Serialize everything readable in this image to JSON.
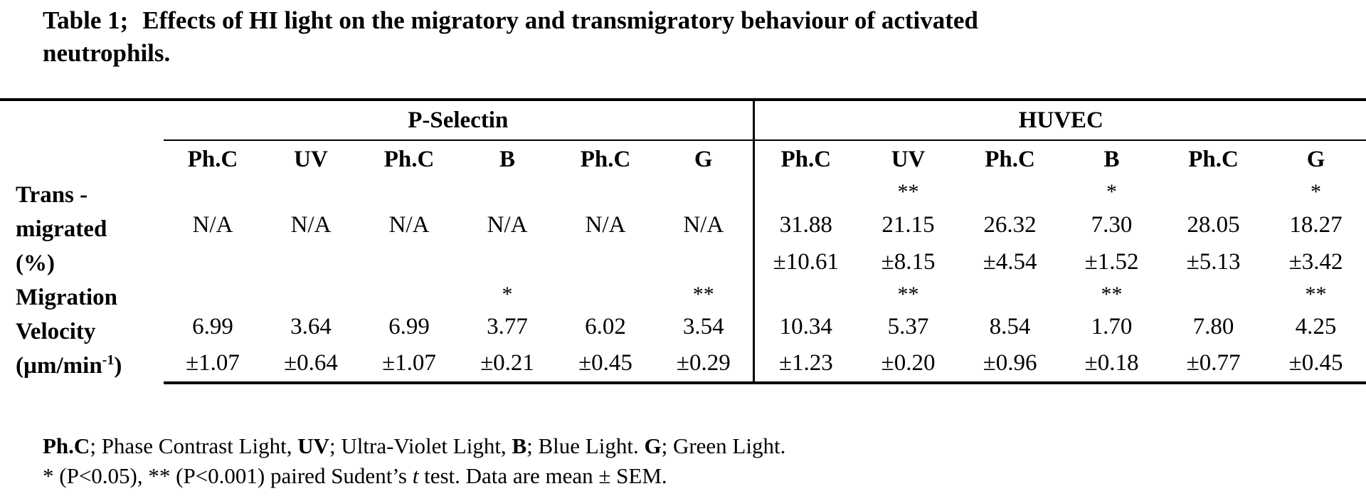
{
  "title": {
    "label": "Table 1;",
    "line1": "Effects of HI light on the migratory and transmigratory behaviour of activated",
    "line2": "neutrophils."
  },
  "groups": [
    "P-Selectin",
    "HUVEC"
  ],
  "columns": [
    "Ph.C",
    "UV",
    "Ph.C",
    "B",
    "Ph.C",
    "G",
    "Ph.C",
    "UV",
    "Ph.C",
    "B",
    "Ph.C",
    "G"
  ],
  "rows": {
    "transmigrated": {
      "label_lines": [
        "Trans -",
        "migrated",
        "(%)"
      ],
      "sig": [
        "",
        "",
        "",
        "",
        "",
        "",
        "",
        "**",
        "",
        "*",
        "",
        "*"
      ],
      "mean": [
        "N/A",
        "N/A",
        "N/A",
        "N/A",
        "N/A",
        "N/A",
        "31.88",
        "21.15",
        "26.32",
        "7.30",
        "28.05",
        "18.27"
      ],
      "sem": [
        "",
        "",
        "",
        "",
        "",
        "",
        "±10.61",
        "±8.15",
        "±4.54",
        "±1.52",
        "±5.13",
        "±3.42"
      ]
    },
    "velocity": {
      "label_lines": [
        "Migration",
        "Velocity",
        "(µm/min"
      ],
      "label_sup": "-1",
      "label_close": ")",
      "sig": [
        "",
        "",
        "",
        "*",
        "",
        "**",
        "",
        "**",
        "",
        "**",
        "",
        "**"
      ],
      "mean": [
        "6.99",
        "3.64",
        "6.99",
        "3.77",
        "6.02",
        "3.54",
        "10.34",
        "5.37",
        "8.54",
        "1.70",
        "7.80",
        "4.25"
      ],
      "sem": [
        "±1.07",
        "±0.64",
        "±1.07",
        "±0.21",
        "±0.45",
        "±0.29",
        "±1.23",
        "±0.20",
        "±0.96",
        "±0.18",
        "±0.77",
        "±0.45"
      ]
    }
  },
  "footnotes": {
    "abbr": [
      {
        "key": "Ph.C",
        "desc": "; Phase Contrast Light, "
      },
      {
        "key": "UV",
        "desc": "; Ultra-Violet Light, "
      },
      {
        "key": "B",
        "desc": "; Blue Light. "
      },
      {
        "key": "G",
        "desc": "; Green Light."
      }
    ],
    "stats_pre": "* (P<0.05), ** (P<0.001) paired Sudent’s ",
    "stats_t": "t",
    "stats_post": " test.  Data are mean ± SEM."
  }
}
